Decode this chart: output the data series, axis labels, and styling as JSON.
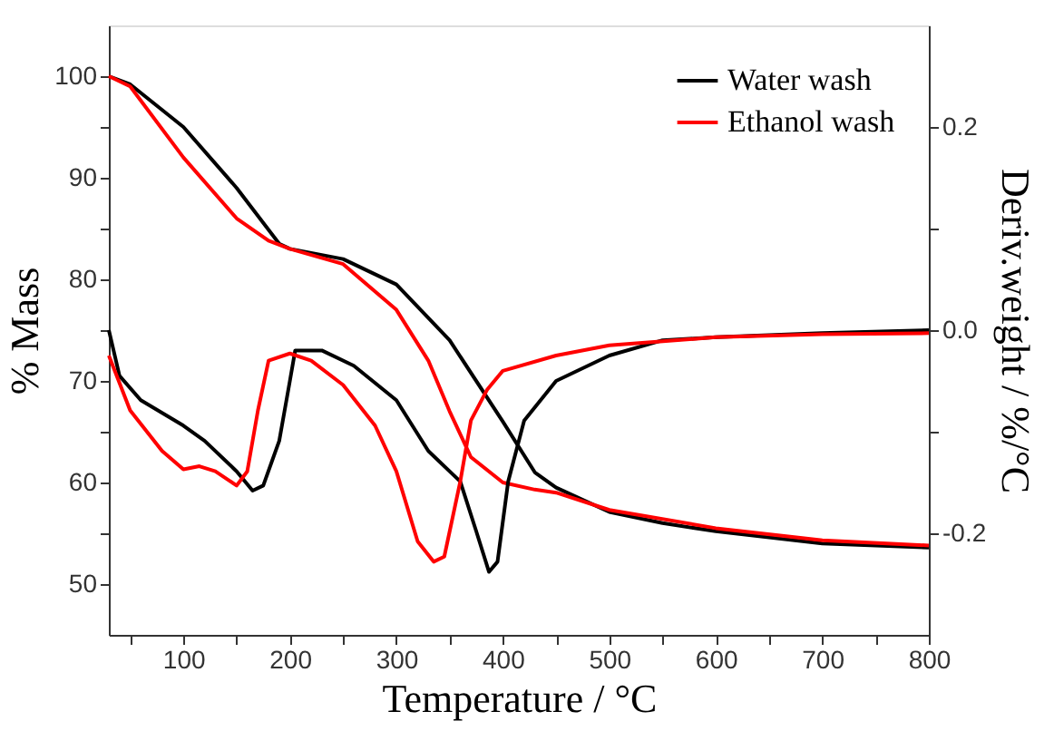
{
  "chart_data": {
    "type": "line",
    "xlabel": "Temperature / °C",
    "ylabel": "% Mass",
    "y2label": "Deriv.weight / %/°C",
    "xlim": [
      30,
      800
    ],
    "xticks": [
      {
        "value": 50,
        "label": null
      },
      100,
      {
        "value": 150,
        "label": null
      },
      200,
      {
        "value": 250,
        "label": null
      },
      300,
      {
        "value": 350,
        "label": null
      },
      400,
      {
        "value": 450,
        "label": null
      },
      500,
      {
        "value": 550,
        "label": null
      },
      600,
      {
        "value": 650,
        "label": null
      },
      700,
      {
        "value": 750,
        "label": null
      },
      800
    ],
    "ylim": [
      45,
      105
    ],
    "yticks": [
      50,
      {
        "value": 55,
        "label": null
      },
      60,
      {
        "value": 65,
        "label": null
      },
      70,
      {
        "value": 75,
        "label": null
      },
      80,
      {
        "value": 85,
        "label": null
      },
      90,
      {
        "value": 95,
        "label": null
      },
      100
    ],
    "y2lim": [
      -0.3,
      0.3
    ],
    "y2ticks": [
      -0.2,
      {
        "value": -0.1,
        "label": null
      },
      {
        "value": 0,
        "label": "0.0"
      },
      {
        "value": 0.1,
        "label": null
      },
      0.2
    ],
    "grid": false,
    "legend": "top right",
    "marker": "none",
    "line_style": "solid",
    "series": [
      {
        "name": "Water wash",
        "color": "#000000",
        "x": [
          30,
          50,
          100,
          150,
          190,
          200,
          250,
          300,
          350,
          400,
          430,
          450,
          500,
          550,
          600,
          700,
          800
        ],
        "values": [
          100,
          99.2,
          95,
          89,
          83.5,
          83,
          82,
          79.5,
          74,
          66,
          61,
          59.5,
          57.1,
          56,
          55.2,
          54,
          53.6
        ]
      },
      {
        "name": "Ethanol wash",
        "color": "#ff0000",
        "x": [
          30,
          50,
          100,
          150,
          180,
          200,
          250,
          300,
          330,
          350,
          370,
          400,
          430,
          450,
          500,
          600,
          700,
          800
        ],
        "values": [
          100,
          99,
          92,
          86,
          83.8,
          83,
          81.5,
          77,
          72,
          67,
          62.5,
          60,
          59.3,
          59,
          57.3,
          55.5,
          54.3,
          53.8
        ]
      },
      {
        "color": "#000000",
        "axis": "y2",
        "x": [
          30,
          40,
          60,
          100,
          120,
          150,
          165,
          175,
          190,
          200,
          205,
          230,
          260,
          300,
          330,
          360,
          375,
          387,
          395,
          405,
          420,
          450,
          500,
          550,
          600,
          700,
          800
        ],
        "values": [
          0,
          -0.045,
          -0.069,
          -0.094,
          -0.109,
          -0.139,
          -0.158,
          -0.153,
          -0.109,
          -0.05,
          -0.02,
          -0.02,
          -0.035,
          -0.069,
          -0.119,
          -0.149,
          -0.198,
          -0.238,
          -0.228,
          -0.149,
          -0.089,
          -0.05,
          -0.025,
          -0.01,
          -0.007,
          -0.003,
          0
        ]
      },
      {
        "color": "#ff0000",
        "axis": "y2",
        "x": [
          30,
          50,
          80,
          100,
          115,
          130,
          150,
          160,
          170,
          180,
          200,
          220,
          250,
          280,
          300,
          320,
          335,
          345,
          360,
          370,
          385,
          400,
          450,
          500,
          600,
          700,
          800
        ],
        "values": [
          -0.025,
          -0.079,
          -0.119,
          -0.137,
          -0.134,
          -0.139,
          -0.153,
          -0.139,
          -0.079,
          -0.03,
          -0.023,
          -0.03,
          -0.054,
          -0.094,
          -0.139,
          -0.208,
          -0.228,
          -0.223,
          -0.149,
          -0.089,
          -0.059,
          -0.04,
          -0.025,
          -0.015,
          -0.007,
          -0.004,
          -0.003
        ]
      }
    ]
  }
}
